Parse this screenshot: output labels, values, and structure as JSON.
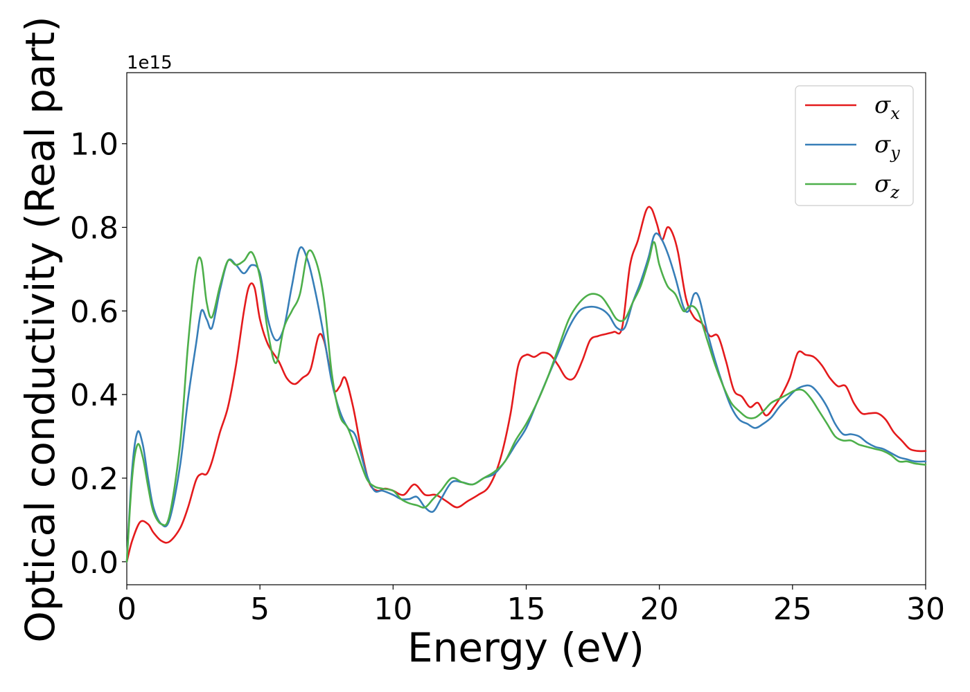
{
  "chart_data": {
    "type": "line",
    "title": "",
    "xlabel": "Energy (eV)",
    "ylabel": "Optical conductivity (Real part)",
    "offset_text": "1e15",
    "xlim": [
      0,
      30
    ],
    "ylim": [
      -0.055,
      1.17
    ],
    "xticks": [
      0,
      5,
      10,
      15,
      20,
      25,
      30
    ],
    "xtick_labels": [
      "0",
      "5",
      "10",
      "15",
      "20",
      "25",
      "30"
    ],
    "yticks": [
      0.0,
      0.2,
      0.4,
      0.6,
      0.8,
      1.0
    ],
    "ytick_labels": [
      "0.0",
      "0.2",
      "0.4",
      "0.6",
      "0.8",
      "1.0"
    ],
    "grid": false,
    "legend_position": "top-right",
    "series": [
      {
        "name": "σx",
        "symbol": "σ",
        "subscript": "x",
        "color": "#e41a1c",
        "x": [
          0,
          0.2,
          0.5,
          0.8,
          1.0,
          1.3,
          1.6,
          2.0,
          2.3,
          2.6,
          2.8,
          3.0,
          3.2,
          3.5,
          3.8,
          4.1,
          4.4,
          4.6,
          4.8,
          5.0,
          5.3,
          5.7,
          6.0,
          6.3,
          6.6,
          6.9,
          7.2,
          7.4,
          7.6,
          7.8,
          8.0,
          8.2,
          8.5,
          8.8,
          9.1,
          9.4,
          9.7,
          10.0,
          10.4,
          10.8,
          11.2,
          11.6,
          12.0,
          12.4,
          12.8,
          13.2,
          13.6,
          14.0,
          14.4,
          14.7,
          15.0,
          15.3,
          15.6,
          15.9,
          16.2,
          16.5,
          16.8,
          17.1,
          17.4,
          17.7,
          18.0,
          18.3,
          18.6,
          18.9,
          19.2,
          19.5,
          19.7,
          19.9,
          20.1,
          20.3,
          20.5,
          20.7,
          21.0,
          21.3,
          21.6,
          21.9,
          22.2,
          22.5,
          22.8,
          23.1,
          23.4,
          23.7,
          24.0,
          24.3,
          24.6,
          24.9,
          25.2,
          25.5,
          25.8,
          26.1,
          26.4,
          26.7,
          27.0,
          27.3,
          27.6,
          27.9,
          28.2,
          28.5,
          28.8,
          29.1,
          29.4,
          29.7,
          30.0
        ],
        "y": [
          0.0,
          0.05,
          0.095,
          0.09,
          0.07,
          0.05,
          0.048,
          0.08,
          0.13,
          0.195,
          0.21,
          0.21,
          0.24,
          0.31,
          0.37,
          0.47,
          0.6,
          0.66,
          0.655,
          0.58,
          0.52,
          0.48,
          0.44,
          0.425,
          0.44,
          0.46,
          0.54,
          0.53,
          0.47,
          0.41,
          0.42,
          0.44,
          0.37,
          0.27,
          0.19,
          0.17,
          0.175,
          0.17,
          0.16,
          0.185,
          0.16,
          0.16,
          0.145,
          0.13,
          0.145,
          0.16,
          0.18,
          0.24,
          0.35,
          0.47,
          0.495,
          0.49,
          0.5,
          0.495,
          0.47,
          0.44,
          0.44,
          0.48,
          0.53,
          0.54,
          0.545,
          0.55,
          0.56,
          0.71,
          0.77,
          0.84,
          0.845,
          0.81,
          0.77,
          0.8,
          0.785,
          0.74,
          0.63,
          0.585,
          0.57,
          0.54,
          0.54,
          0.48,
          0.41,
          0.395,
          0.37,
          0.38,
          0.35,
          0.37,
          0.4,
          0.44,
          0.5,
          0.495,
          0.49,
          0.47,
          0.44,
          0.42,
          0.42,
          0.38,
          0.355,
          0.355,
          0.355,
          0.34,
          0.31,
          0.29,
          0.27,
          0.265,
          0.265
        ]
      },
      {
        "name": "σy",
        "symbol": "σ",
        "subscript": "y",
        "color": "#377eb8",
        "x": [
          0,
          0.2,
          0.4,
          0.6,
          0.8,
          1.0,
          1.3,
          1.6,
          2.0,
          2.3,
          2.6,
          2.8,
          3.0,
          3.2,
          3.5,
          3.8,
          4.1,
          4.4,
          4.7,
          5.0,
          5.3,
          5.6,
          5.9,
          6.2,
          6.5,
          6.8,
          7.1,
          7.4,
          7.7,
          8.0,
          8.3,
          8.6,
          9.0,
          9.3,
          9.6,
          10.0,
          10.3,
          10.6,
          10.9,
          11.2,
          11.5,
          11.8,
          12.2,
          12.6,
          13.0,
          13.4,
          13.8,
          14.2,
          14.6,
          15.0,
          15.4,
          15.8,
          16.2,
          16.6,
          17.0,
          17.4,
          17.8,
          18.1,
          18.4,
          18.7,
          19.0,
          19.3,
          19.6,
          19.8,
          20.0,
          20.3,
          20.6,
          20.9,
          21.1,
          21.3,
          21.5,
          21.8,
          22.1,
          22.4,
          22.7,
          23.0,
          23.3,
          23.6,
          23.9,
          24.2,
          24.5,
          24.8,
          25.1,
          25.4,
          25.7,
          26.0,
          26.3,
          26.6,
          26.9,
          27.2,
          27.5,
          27.8,
          28.1,
          28.4,
          28.7,
          29.0,
          29.3,
          29.6,
          30.0
        ],
        "y": [
          0.0,
          0.22,
          0.31,
          0.28,
          0.2,
          0.13,
          0.09,
          0.1,
          0.23,
          0.39,
          0.52,
          0.6,
          0.58,
          0.56,
          0.65,
          0.72,
          0.71,
          0.69,
          0.71,
          0.69,
          0.58,
          0.53,
          0.56,
          0.66,
          0.75,
          0.72,
          0.64,
          0.54,
          0.43,
          0.36,
          0.32,
          0.3,
          0.21,
          0.17,
          0.17,
          0.16,
          0.15,
          0.15,
          0.155,
          0.13,
          0.12,
          0.15,
          0.19,
          0.19,
          0.185,
          0.2,
          0.21,
          0.24,
          0.28,
          0.32,
          0.38,
          0.44,
          0.5,
          0.56,
          0.6,
          0.61,
          0.605,
          0.59,
          0.56,
          0.56,
          0.62,
          0.67,
          0.73,
          0.78,
          0.78,
          0.74,
          0.68,
          0.61,
          0.6,
          0.64,
          0.63,
          0.55,
          0.48,
          0.42,
          0.37,
          0.34,
          0.33,
          0.32,
          0.33,
          0.345,
          0.37,
          0.39,
          0.41,
          0.42,
          0.42,
          0.4,
          0.37,
          0.33,
          0.305,
          0.305,
          0.3,
          0.285,
          0.275,
          0.27,
          0.26,
          0.25,
          0.245,
          0.24,
          0.24
        ]
      },
      {
        "name": "σz",
        "symbol": "σ",
        "subscript": "z",
        "color": "#4daf4a",
        "x": [
          0,
          0.2,
          0.4,
          0.6,
          0.8,
          1.0,
          1.3,
          1.6,
          2.0,
          2.3,
          2.6,
          2.8,
          3.0,
          3.2,
          3.5,
          3.8,
          4.1,
          4.4,
          4.7,
          5.0,
          5.3,
          5.6,
          5.9,
          6.2,
          6.5,
          6.8,
          7.1,
          7.4,
          7.7,
          8.0,
          8.3,
          8.6,
          9.0,
          9.3,
          9.6,
          10.0,
          10.3,
          10.6,
          10.9,
          11.2,
          11.5,
          11.8,
          12.2,
          12.6,
          13.0,
          13.4,
          13.8,
          14.2,
          14.6,
          15.0,
          15.4,
          15.8,
          16.2,
          16.6,
          17.0,
          17.4,
          17.8,
          18.1,
          18.4,
          18.7,
          19.0,
          19.3,
          19.6,
          19.8,
          20.0,
          20.3,
          20.6,
          20.9,
          21.1,
          21.3,
          21.5,
          21.8,
          22.1,
          22.4,
          22.7,
          23.0,
          23.3,
          23.6,
          23.9,
          24.2,
          24.5,
          24.8,
          25.1,
          25.4,
          25.7,
          26.0,
          26.3,
          26.6,
          26.9,
          27.2,
          27.5,
          27.8,
          28.1,
          28.4,
          28.7,
          29.0,
          29.3,
          29.6,
          30.0
        ],
        "y": [
          0.0,
          0.2,
          0.28,
          0.25,
          0.18,
          0.12,
          0.09,
          0.11,
          0.28,
          0.52,
          0.7,
          0.72,
          0.62,
          0.585,
          0.66,
          0.72,
          0.71,
          0.72,
          0.74,
          0.68,
          0.55,
          0.475,
          0.56,
          0.6,
          0.64,
          0.74,
          0.72,
          0.63,
          0.45,
          0.35,
          0.32,
          0.27,
          0.2,
          0.18,
          0.175,
          0.17,
          0.15,
          0.14,
          0.135,
          0.13,
          0.15,
          0.17,
          0.2,
          0.19,
          0.185,
          0.2,
          0.215,
          0.24,
          0.29,
          0.33,
          0.38,
          0.44,
          0.51,
          0.58,
          0.62,
          0.64,
          0.635,
          0.61,
          0.58,
          0.58,
          0.62,
          0.66,
          0.72,
          0.765,
          0.71,
          0.66,
          0.64,
          0.6,
          0.61,
          0.61,
          0.59,
          0.53,
          0.47,
          0.42,
          0.38,
          0.36,
          0.345,
          0.345,
          0.36,
          0.38,
          0.39,
          0.4,
          0.41,
          0.41,
          0.39,
          0.36,
          0.33,
          0.3,
          0.29,
          0.29,
          0.28,
          0.275,
          0.27,
          0.265,
          0.255,
          0.24,
          0.24,
          0.235,
          0.232
        ]
      }
    ]
  }
}
